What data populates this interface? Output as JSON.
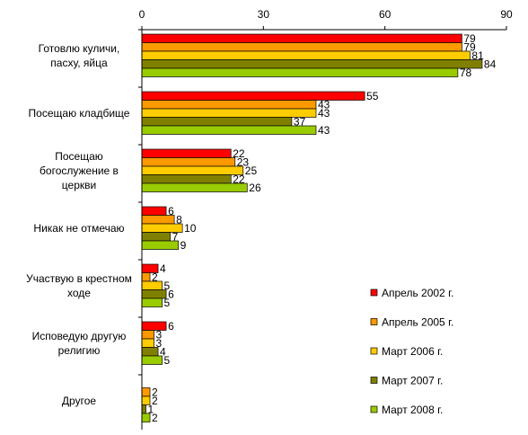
{
  "chart_data": {
    "type": "bar",
    "orientation": "horizontal",
    "xlim": [
      0,
      90
    ],
    "xticks": [
      0,
      30,
      60,
      90
    ],
    "tick_labels": [
      "0",
      "30",
      "60",
      "90"
    ],
    "grid": false,
    "legend_position": "bottom-right",
    "categories": [
      [
        "Готовлю куличи,",
        "пасху, яйца"
      ],
      [
        "Посещаю кладбище"
      ],
      [
        "Посещаю",
        "богослужение в",
        "церкви"
      ],
      [
        "Никак не отмечаю"
      ],
      [
        "Участвую в крестном",
        "ходе"
      ],
      [
        "Исповедую другую",
        "религию"
      ],
      [
        "Другое"
      ]
    ],
    "series": [
      {
        "name": "Апрель 2002 г.",
        "color": "#ff0000",
        "values": [
          79,
          55,
          22,
          6,
          4,
          6,
          null
        ]
      },
      {
        "name": "Апрель 2005 г.",
        "color": "#ff9900",
        "values": [
          79,
          43,
          23,
          8,
          2,
          3,
          2
        ]
      },
      {
        "name": "Март 2006 г.",
        "color": "#ffcc00",
        "values": [
          81,
          43,
          25,
          10,
          5,
          3,
          2
        ]
      },
      {
        "name": "Март 2007 г.",
        "color": "#808000",
        "values": [
          84,
          37,
          22,
          7,
          6,
          4,
          1
        ]
      },
      {
        "name": "Март 2008 г.",
        "color": "#99cc00",
        "values": [
          78,
          43,
          26,
          9,
          5,
          5,
          2
        ]
      }
    ]
  }
}
